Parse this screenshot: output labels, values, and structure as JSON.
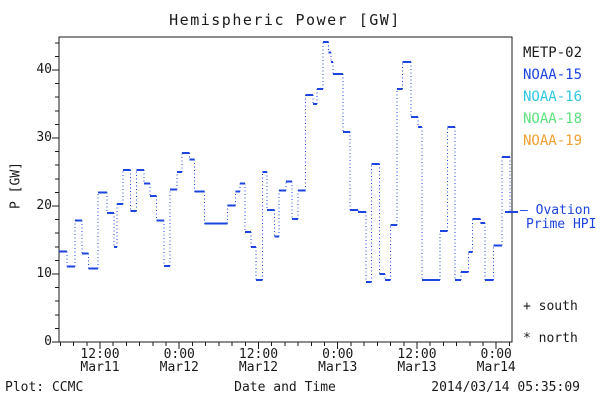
{
  "title": "Hemispheric Power [GW]",
  "axes": {
    "y_label": "P [GW]",
    "x_label": "Date and Time",
    "y_ticks": [
      0,
      10,
      20,
      30,
      40
    ],
    "y_minor_step": 2,
    "x_ticks": [
      {
        "t": 6.21,
        "time": "12:00",
        "date": "Mar11"
      },
      {
        "t": 18.21,
        "time": "0:00",
        "date": "Mar12"
      },
      {
        "t": 30.21,
        "time": "12:00",
        "date": "Mar12"
      },
      {
        "t": 42.21,
        "time": "0:00",
        "date": "Mar13"
      },
      {
        "t": 54.21,
        "time": "12:00",
        "date": "Mar13"
      },
      {
        "t": 66.21,
        "time": "0:00",
        "date": "Mar14"
      }
    ],
    "x_minor_step": 2
  },
  "legend": {
    "satellites": [
      {
        "label": "METP-02",
        "color": "#1a1a1a"
      },
      {
        "label": "NOAA-15",
        "color": "#1e44e0"
      },
      {
        "label": "NOAA-16",
        "color": "#2fc8e0"
      },
      {
        "label": "NOAA-18",
        "color": "#5fe07f"
      },
      {
        "label": "NOAA-19",
        "color": "#f0a030"
      }
    ],
    "ovation_line1": "— Ovation",
    "ovation_line2": "Prime HPI",
    "south_marker": "+ south",
    "north_marker": "* north"
  },
  "footer": {
    "plot_credit": "Plot: CCMC",
    "timestamp": "2014/03/14 05:35:09"
  },
  "chart_data": {
    "type": "line",
    "title": "Hemispheric Power [GW]",
    "xlabel": "Date and Time",
    "ylabel": "P [GW]",
    "series_name": "Ovation Prime HPI",
    "line_color": "#1e44e0",
    "line_style": "step-after: solid horizontal levels, dotted vertical risers",
    "x_unit": "hours from left edge of plot (Mar11 ~06:00 to Mar14 ~02:20)",
    "x_range": [
      0,
      68.6
    ],
    "y_range": [
      0,
      44.85
    ],
    "grid": false,
    "legend_position": "right, outside plot",
    "points": [
      [
        0.0,
        13.3
      ],
      [
        1.2,
        11.1
      ],
      [
        2.4,
        17.9
      ],
      [
        3.5,
        13.0
      ],
      [
        4.5,
        10.8
      ],
      [
        5.9,
        22.0
      ],
      [
        7.3,
        19.0
      ],
      [
        8.3,
        14.0
      ],
      [
        8.8,
        20.3
      ],
      [
        9.7,
        25.3
      ],
      [
        10.8,
        19.3
      ],
      [
        11.7,
        25.3
      ],
      [
        12.9,
        23.3
      ],
      [
        13.8,
        21.5
      ],
      [
        14.8,
        17.9
      ],
      [
        15.9,
        11.2
      ],
      [
        16.8,
        22.4
      ],
      [
        17.9,
        25.0
      ],
      [
        18.6,
        27.8
      ],
      [
        19.8,
        26.8
      ],
      [
        20.5,
        22.1
      ],
      [
        22.0,
        17.4
      ],
      [
        25.5,
        20.1
      ],
      [
        26.7,
        22.1
      ],
      [
        27.4,
        23.3
      ],
      [
        28.2,
        16.2
      ],
      [
        29.1,
        14.0
      ],
      [
        29.8,
        9.1
      ],
      [
        30.8,
        25.0
      ],
      [
        31.5,
        19.4
      ],
      [
        32.6,
        15.5
      ],
      [
        33.3,
        22.3
      ],
      [
        34.4,
        23.6
      ],
      [
        35.3,
        18.1
      ],
      [
        36.2,
        22.3
      ],
      [
        37.3,
        36.3
      ],
      [
        38.5,
        35.0
      ],
      [
        39.1,
        37.2
      ],
      [
        40.0,
        44.1
      ],
      [
        40.8,
        42.6
      ],
      [
        41.2,
        41.2
      ],
      [
        41.5,
        39.4
      ],
      [
        43.0,
        30.9
      ],
      [
        44.1,
        19.4
      ],
      [
        45.3,
        19.1
      ],
      [
        46.5,
        8.8
      ],
      [
        47.3,
        26.2
      ],
      [
        48.5,
        10.0
      ],
      [
        49.4,
        9.1
      ],
      [
        50.2,
        17.2
      ],
      [
        51.2,
        37.2
      ],
      [
        52.0,
        41.2
      ],
      [
        53.3,
        33.1
      ],
      [
        54.4,
        31.6
      ],
      [
        55.0,
        9.1
      ],
      [
        57.7,
        16.3
      ],
      [
        58.8,
        31.6
      ],
      [
        60.0,
        9.1
      ],
      [
        60.9,
        10.3
      ],
      [
        62.0,
        13.2
      ],
      [
        62.6,
        18.1
      ],
      [
        63.8,
        17.5
      ],
      [
        64.5,
        9.1
      ],
      [
        65.8,
        14.2
      ],
      [
        67.1,
        27.2
      ],
      [
        68.3,
        19.1
      ]
    ]
  }
}
